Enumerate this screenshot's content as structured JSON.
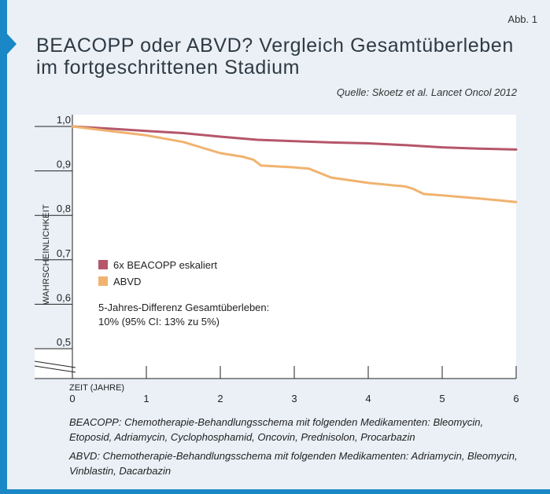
{
  "figure_label": "Abb. 1",
  "title_line1": "BEACOPP oder ABVD? Vergleich Gesamtüberleben",
  "title_line2": "im fortgeschrittenen Stadium",
  "source": "Quelle: Skoetz et al. Lancet Oncol 2012",
  "colors": {
    "accent": "#1a88c6",
    "background": "#eaf0f6",
    "beacopp": "#b5566a",
    "abvd": "#f0b36f"
  },
  "chart_data": {
    "type": "line",
    "title": "",
    "xlabel": "ZEIT (JAHRE)",
    "ylabel": "WAHRSCHEINLICHKEIT",
    "xlim": [
      0,
      6
    ],
    "ylim": [
      0.5,
      1.0
    ],
    "x_ticks": [
      "0",
      "1",
      "2",
      "3",
      "4",
      "5",
      "6"
    ],
    "y_ticks": [
      "0,5",
      "0,6",
      "0,7",
      "0,8",
      "0,9",
      "1,0"
    ],
    "y_axis_break": true,
    "grid": false,
    "legend_position": "center-left",
    "series": [
      {
        "name": "6x BEACOPP eskaliert",
        "color": "#b5566a",
        "x": [
          0,
          0.5,
          1.0,
          1.5,
          2.0,
          2.5,
          3.0,
          3.5,
          4.0,
          4.5,
          5.0,
          5.5,
          6.0
        ],
        "y": [
          1.0,
          0.995,
          0.99,
          0.985,
          0.977,
          0.97,
          0.967,
          0.964,
          0.962,
          0.958,
          0.953,
          0.95,
          0.948
        ]
      },
      {
        "name": "ABVD",
        "color": "#f0b36f",
        "x": [
          0,
          0.5,
          1.0,
          1.5,
          2.0,
          2.3,
          2.45,
          2.55,
          3.0,
          3.2,
          3.5,
          4.0,
          4.5,
          4.6,
          4.75,
          5.0,
          5.5,
          6.0
        ],
        "y": [
          1.0,
          0.99,
          0.98,
          0.965,
          0.94,
          0.932,
          0.925,
          0.912,
          0.908,
          0.905,
          0.885,
          0.873,
          0.865,
          0.86,
          0.848,
          0.845,
          0.838,
          0.83
        ]
      }
    ],
    "annotation_line1": "5-Jahres-Differenz Gesamtüberleben:",
    "annotation_line2": "10% (95% CI: 13% zu 5%)"
  },
  "footnote_beacopp": "BEACOPP: Chemotherapie-Behandlungsschema mit folgenden Medikamenten: Bleomycin, Etoposid, Adriamycin, Cyclophosphamid, Oncovin, Prednisolon, Procarbazin",
  "footnote_abvd": "ABVD: Chemotherapie-Behandlungsschema mit folgenden Medikamenten: Adriamycin, Bleomycin, Vinblastin, Dacarbazin"
}
